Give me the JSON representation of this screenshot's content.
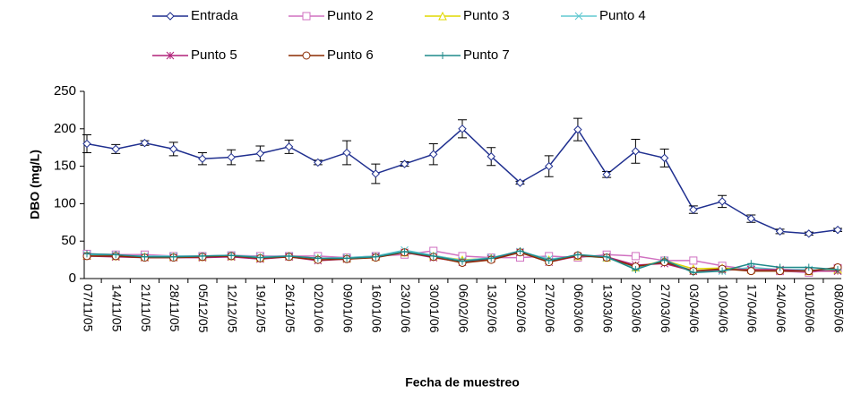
{
  "chart_data": {
    "type": "line",
    "ylabel": "DBO (mg/L)",
    "xlabel": "Fecha de muestreo",
    "categories": [
      "07/11/05",
      "14/11/05",
      "21/11/05",
      "28/11/05",
      "05/12/05",
      "12/12/05",
      "19/12/05",
      "26/12/05",
      "02/01/06",
      "09/01/06",
      "16/01/06",
      "23/01/06",
      "30/01/06",
      "06/02/06",
      "13/02/06",
      "20/02/06",
      "27/02/06",
      "06/03/06",
      "13/03/06",
      "20/03/06",
      "27/03/06",
      "03/04/06",
      "10/04/06",
      "17/04/06",
      "24/04/06",
      "01/05/06",
      "08/05/06"
    ],
    "ylim": [
      0,
      250
    ],
    "yticks": [
      0,
      50,
      100,
      150,
      200,
      250
    ],
    "grid": false,
    "series": [
      {
        "name": "Entrada",
        "color": "#1f2f8f",
        "marker": "diamond",
        "values": [
          180,
          173,
          181,
          173,
          160,
          162,
          167,
          176,
          155,
          168,
          140,
          153,
          166,
          200,
          163,
          128,
          150,
          199,
          139,
          170,
          161,
          92,
          103,
          80,
          63,
          60,
          65
        ],
        "errors": [
          12,
          6,
          3,
          9,
          8,
          10,
          10,
          9,
          3,
          16,
          13,
          3,
          14,
          12,
          12,
          2,
          14,
          15,
          4,
          16,
          12,
          5,
          8,
          5,
          3,
          2,
          2
        ]
      },
      {
        "name": "Punto 2",
        "color": "#d070c0",
        "marker": "square",
        "values": [
          33,
          32,
          32,
          30,
          30,
          31,
          30,
          30,
          30,
          28,
          30,
          32,
          37,
          30,
          28,
          28,
          30,
          28,
          32,
          30,
          24,
          24,
          17,
          12,
          10,
          8,
          14
        ]
      },
      {
        "name": "Punto 3",
        "color": "#e0d800",
        "marker": "triangle",
        "values": [
          31,
          30,
          29,
          29,
          29,
          30,
          28,
          30,
          27,
          27,
          29,
          35,
          30,
          25,
          27,
          36,
          25,
          30,
          28,
          15,
          24,
          13,
          14,
          12,
          12,
          10,
          12
        ]
      },
      {
        "name": "Punto 4",
        "color": "#60c8d0",
        "marker": "x",
        "values": [
          32,
          31,
          30,
          30,
          30,
          31,
          29,
          30,
          27,
          28,
          30,
          38,
          31,
          24,
          28,
          36,
          26,
          30,
          28,
          14,
          24,
          10,
          10,
          15,
          12,
          12,
          10
        ]
      },
      {
        "name": "Punto 5",
        "color": "#b02078",
        "marker": "star",
        "values": [
          30,
          29,
          28,
          28,
          28,
          29,
          26,
          29,
          24,
          26,
          29,
          35,
          28,
          22,
          26,
          35,
          22,
          30,
          29,
          18,
          20,
          10,
          12,
          12,
          12,
          10,
          10
        ]
      },
      {
        "name": "Punto 6",
        "color": "#8b2a00",
        "marker": "circle",
        "values": [
          30,
          30,
          28,
          28,
          29,
          30,
          27,
          29,
          25,
          26,
          28,
          35,
          29,
          21,
          25,
          35,
          22,
          31,
          28,
          16,
          22,
          10,
          13,
          10,
          10,
          10,
          15
        ]
      },
      {
        "name": "Punto 7",
        "color": "#1f8a8a",
        "marker": "plus",
        "values": [
          33,
          32,
          29,
          29,
          30,
          31,
          28,
          30,
          27,
          27,
          29,
          36,
          30,
          23,
          27,
          37,
          24,
          32,
          29,
          12,
          25,
          8,
          10,
          20,
          15,
          15,
          12
        ]
      }
    ]
  }
}
